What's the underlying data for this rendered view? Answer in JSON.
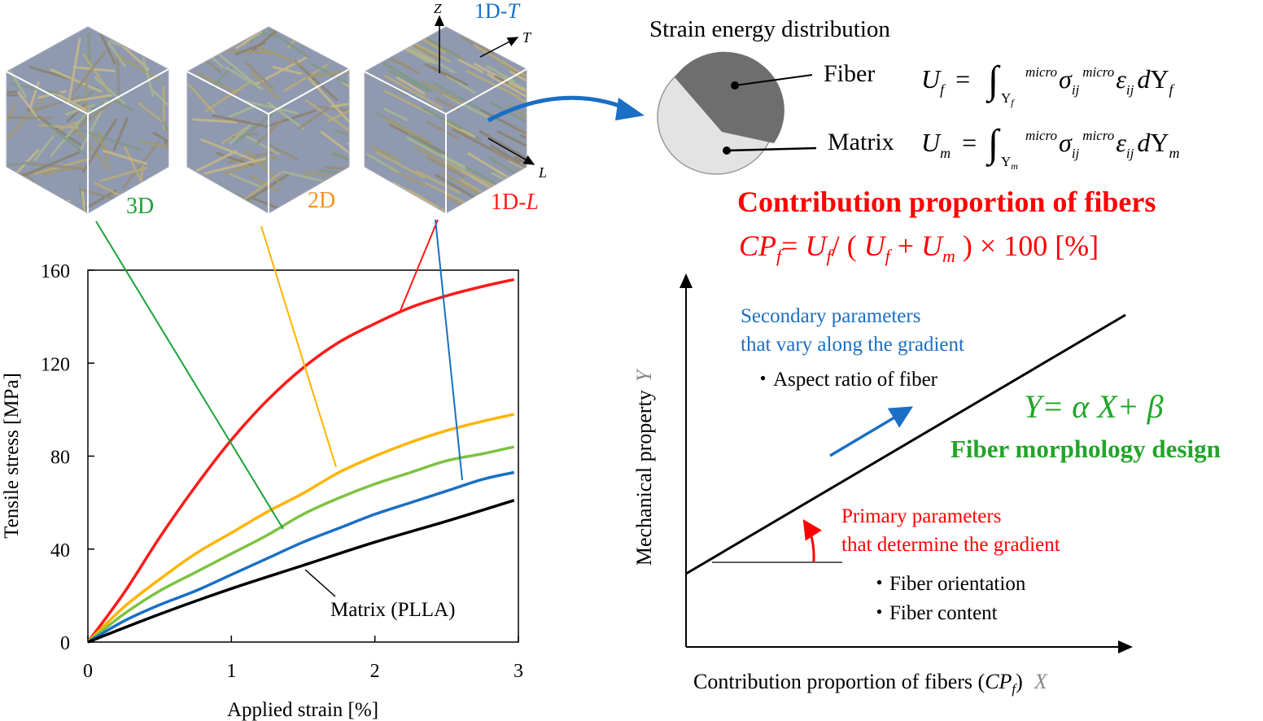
{
  "cubes": [
    {
      "label": "3D",
      "color": "#1aa33a"
    },
    {
      "label": "2D",
      "color": "#f5921e"
    },
    {
      "label": "1D-",
      "label_italic": "L",
      "color": "#ff1a1a"
    }
  ],
  "cube_axes": {
    "z": "Z",
    "t": "T",
    "l": "L",
    "top_label": "1D-",
    "top_label_italic": "T",
    "top_color": "#1a6fc4"
  },
  "strain_energy": {
    "title": "Strain energy distribution",
    "fiber_label": "Fiber",
    "matrix_label": "Matrix",
    "fiber_formula": {
      "lhs": "U",
      "lhs_sub": "f",
      "eq": "=",
      "int_sub": "Y",
      "int_sub2": "f",
      "sup1": "micro",
      "sigma": "σ",
      "ij1": "ij",
      "sup2": "micro",
      "eps": "ε",
      "ij2": "ij",
      "d": "d",
      "Y": "Y",
      "Ysub": "f"
    },
    "matrix_formula": {
      "lhs": "U",
      "lhs_sub": "m",
      "eq": "=",
      "int_sub": "Y",
      "int_sub2": "m",
      "sup1": "micro",
      "sigma": "σ",
      "ij1": "ij",
      "sup2": "micro",
      "eps": "ε",
      "ij2": "ij",
      "d": "d",
      "Y": "Y",
      "Ysub": "m"
    },
    "fiber_color": "#6e6e6e",
    "matrix_color": "#e3e3e3"
  },
  "contribution": {
    "title": "Contribution proportion of fibers",
    "formula": {
      "cp": "CP",
      "cp_sub": "f",
      "eq": "= ",
      "uf": "U",
      "uf_sub": "f",
      "slash": "/ ( ",
      "uf2": "U",
      "uf2_sub": "f",
      "plus": " + ",
      "um": "U",
      "um_sub": "m",
      "rest": " )  ×  100 [%]"
    },
    "color": "#ff0000"
  },
  "chart_data": {
    "type": "line",
    "xlabel": "Applied strain [%]",
    "ylabel": "Tensile stress [MPa]",
    "xlim": [
      0,
      3
    ],
    "ylim": [
      0,
      160
    ],
    "xticks": [
      "0",
      "1",
      "2",
      "3"
    ],
    "yticks": [
      "0",
      "40",
      "80",
      "120",
      "160"
    ],
    "grid": false,
    "annotation": "Matrix (PLLA)",
    "series": [
      {
        "color": "#ff1a1a",
        "x": [
          0,
          0.25,
          0.5,
          0.75,
          1,
          1.25,
          1.5,
          1.75,
          2,
          2.25,
          2.5,
          2.75,
          2.97
        ],
        "y": [
          0,
          21,
          45,
          67,
          87,
          104,
          118,
          129,
          137,
          144,
          149,
          153,
          156
        ]
      },
      {
        "color": "#ffb400",
        "x": [
          0,
          0.25,
          0.5,
          0.75,
          1,
          1.25,
          1.5,
          1.75,
          2,
          2.25,
          2.5,
          2.75,
          2.97
        ],
        "y": [
          0,
          15,
          27,
          38,
          47,
          56,
          64,
          73,
          80,
          86,
          91,
          95,
          98
        ]
      },
      {
        "color": "#7dc242",
        "x": [
          0,
          0.25,
          0.5,
          0.75,
          1,
          1.25,
          1.5,
          1.75,
          2,
          2.25,
          2.5,
          2.75,
          2.97
        ],
        "y": [
          0,
          12,
          22,
          30,
          38,
          46,
          55,
          62,
          68,
          73,
          78,
          81,
          84
        ]
      },
      {
        "color": "#1a6fc4",
        "x": [
          0,
          0.25,
          0.5,
          0.75,
          1,
          1.25,
          1.5,
          1.75,
          2,
          2.25,
          2.5,
          2.75,
          2.97
        ],
        "y": [
          0,
          9,
          16,
          22,
          29,
          36,
          43,
          49,
          55,
          60,
          65,
          70,
          73
        ]
      },
      {
        "name": "Matrix (PLLA)",
        "color": "#000000",
        "x": [
          0,
          0.5,
          1,
          1.5,
          2,
          2.5,
          2.97
        ],
        "y": [
          0,
          12,
          23,
          33,
          43,
          52,
          61
        ]
      }
    ]
  },
  "design": {
    "ylabel": "Mechanical property",
    "ylabel_var": "Y",
    "xlabel": "Contribution proportion of fibers (",
    "xlabel_cp": "CP",
    "xlabel_sub": "f",
    "xlabel_end": ")",
    "xlabel_var": "X",
    "secondary_1": "Secondary parameters",
    "secondary_2": "that vary along the gradient",
    "secondary_item": "・Aspect ratio of fiber",
    "primary_1": "Primary parameters",
    "primary_2": "that determine the gradient",
    "primary_items": [
      "・Fiber orientation",
      "・Fiber content"
    ],
    "equation": "Y= α X+ β",
    "design_label": "Fiber morphology design",
    "blue": "#1a6fc4",
    "red": "#ff0000",
    "green": "#22a52a"
  }
}
